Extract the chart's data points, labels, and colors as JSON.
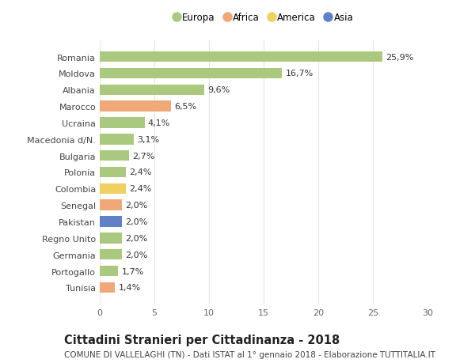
{
  "countries": [
    "Romania",
    "Moldova",
    "Albania",
    "Marocco",
    "Ucraina",
    "Macedonia d/N.",
    "Bulgaria",
    "Polonia",
    "Colombia",
    "Senegal",
    "Pakistan",
    "Regno Unito",
    "Germania",
    "Portogallo",
    "Tunisia"
  ],
  "values": [
    25.9,
    16.7,
    9.6,
    6.5,
    4.1,
    3.1,
    2.7,
    2.4,
    2.4,
    2.0,
    2.0,
    2.0,
    2.0,
    1.7,
    1.4
  ],
  "labels": [
    "25,9%",
    "16,7%",
    "9,6%",
    "6,5%",
    "4,1%",
    "3,1%",
    "2,7%",
    "2,4%",
    "2,4%",
    "2,0%",
    "2,0%",
    "2,0%",
    "2,0%",
    "1,7%",
    "1,4%"
  ],
  "continents": [
    "Europa",
    "Europa",
    "Europa",
    "Africa",
    "Europa",
    "Europa",
    "Europa",
    "Europa",
    "America",
    "Africa",
    "Asia",
    "Europa",
    "Europa",
    "Europa",
    "Africa"
  ],
  "continent_colors": {
    "Europa": "#aac97e",
    "Africa": "#f0a878",
    "America": "#f0d060",
    "Asia": "#6080c8"
  },
  "legend_order": [
    "Europa",
    "Africa",
    "America",
    "Asia"
  ],
  "title": "Cittadini Stranieri per Cittadinanza - 2018",
  "subtitle": "COMUNE DI VALLELAGHI (TN) - Dati ISTAT al 1° gennaio 2018 - Elaborazione TUTTITALIA.IT",
  "xlim": [
    0,
    30
  ],
  "xticks": [
    0,
    5,
    10,
    15,
    20,
    25,
    30
  ],
  "background_color": "#ffffff",
  "grid_color": "#e5e5e5",
  "bar_height": 0.65,
  "label_fontsize": 8,
  "tick_fontsize": 8,
  "title_fontsize": 10.5,
  "subtitle_fontsize": 7.5
}
